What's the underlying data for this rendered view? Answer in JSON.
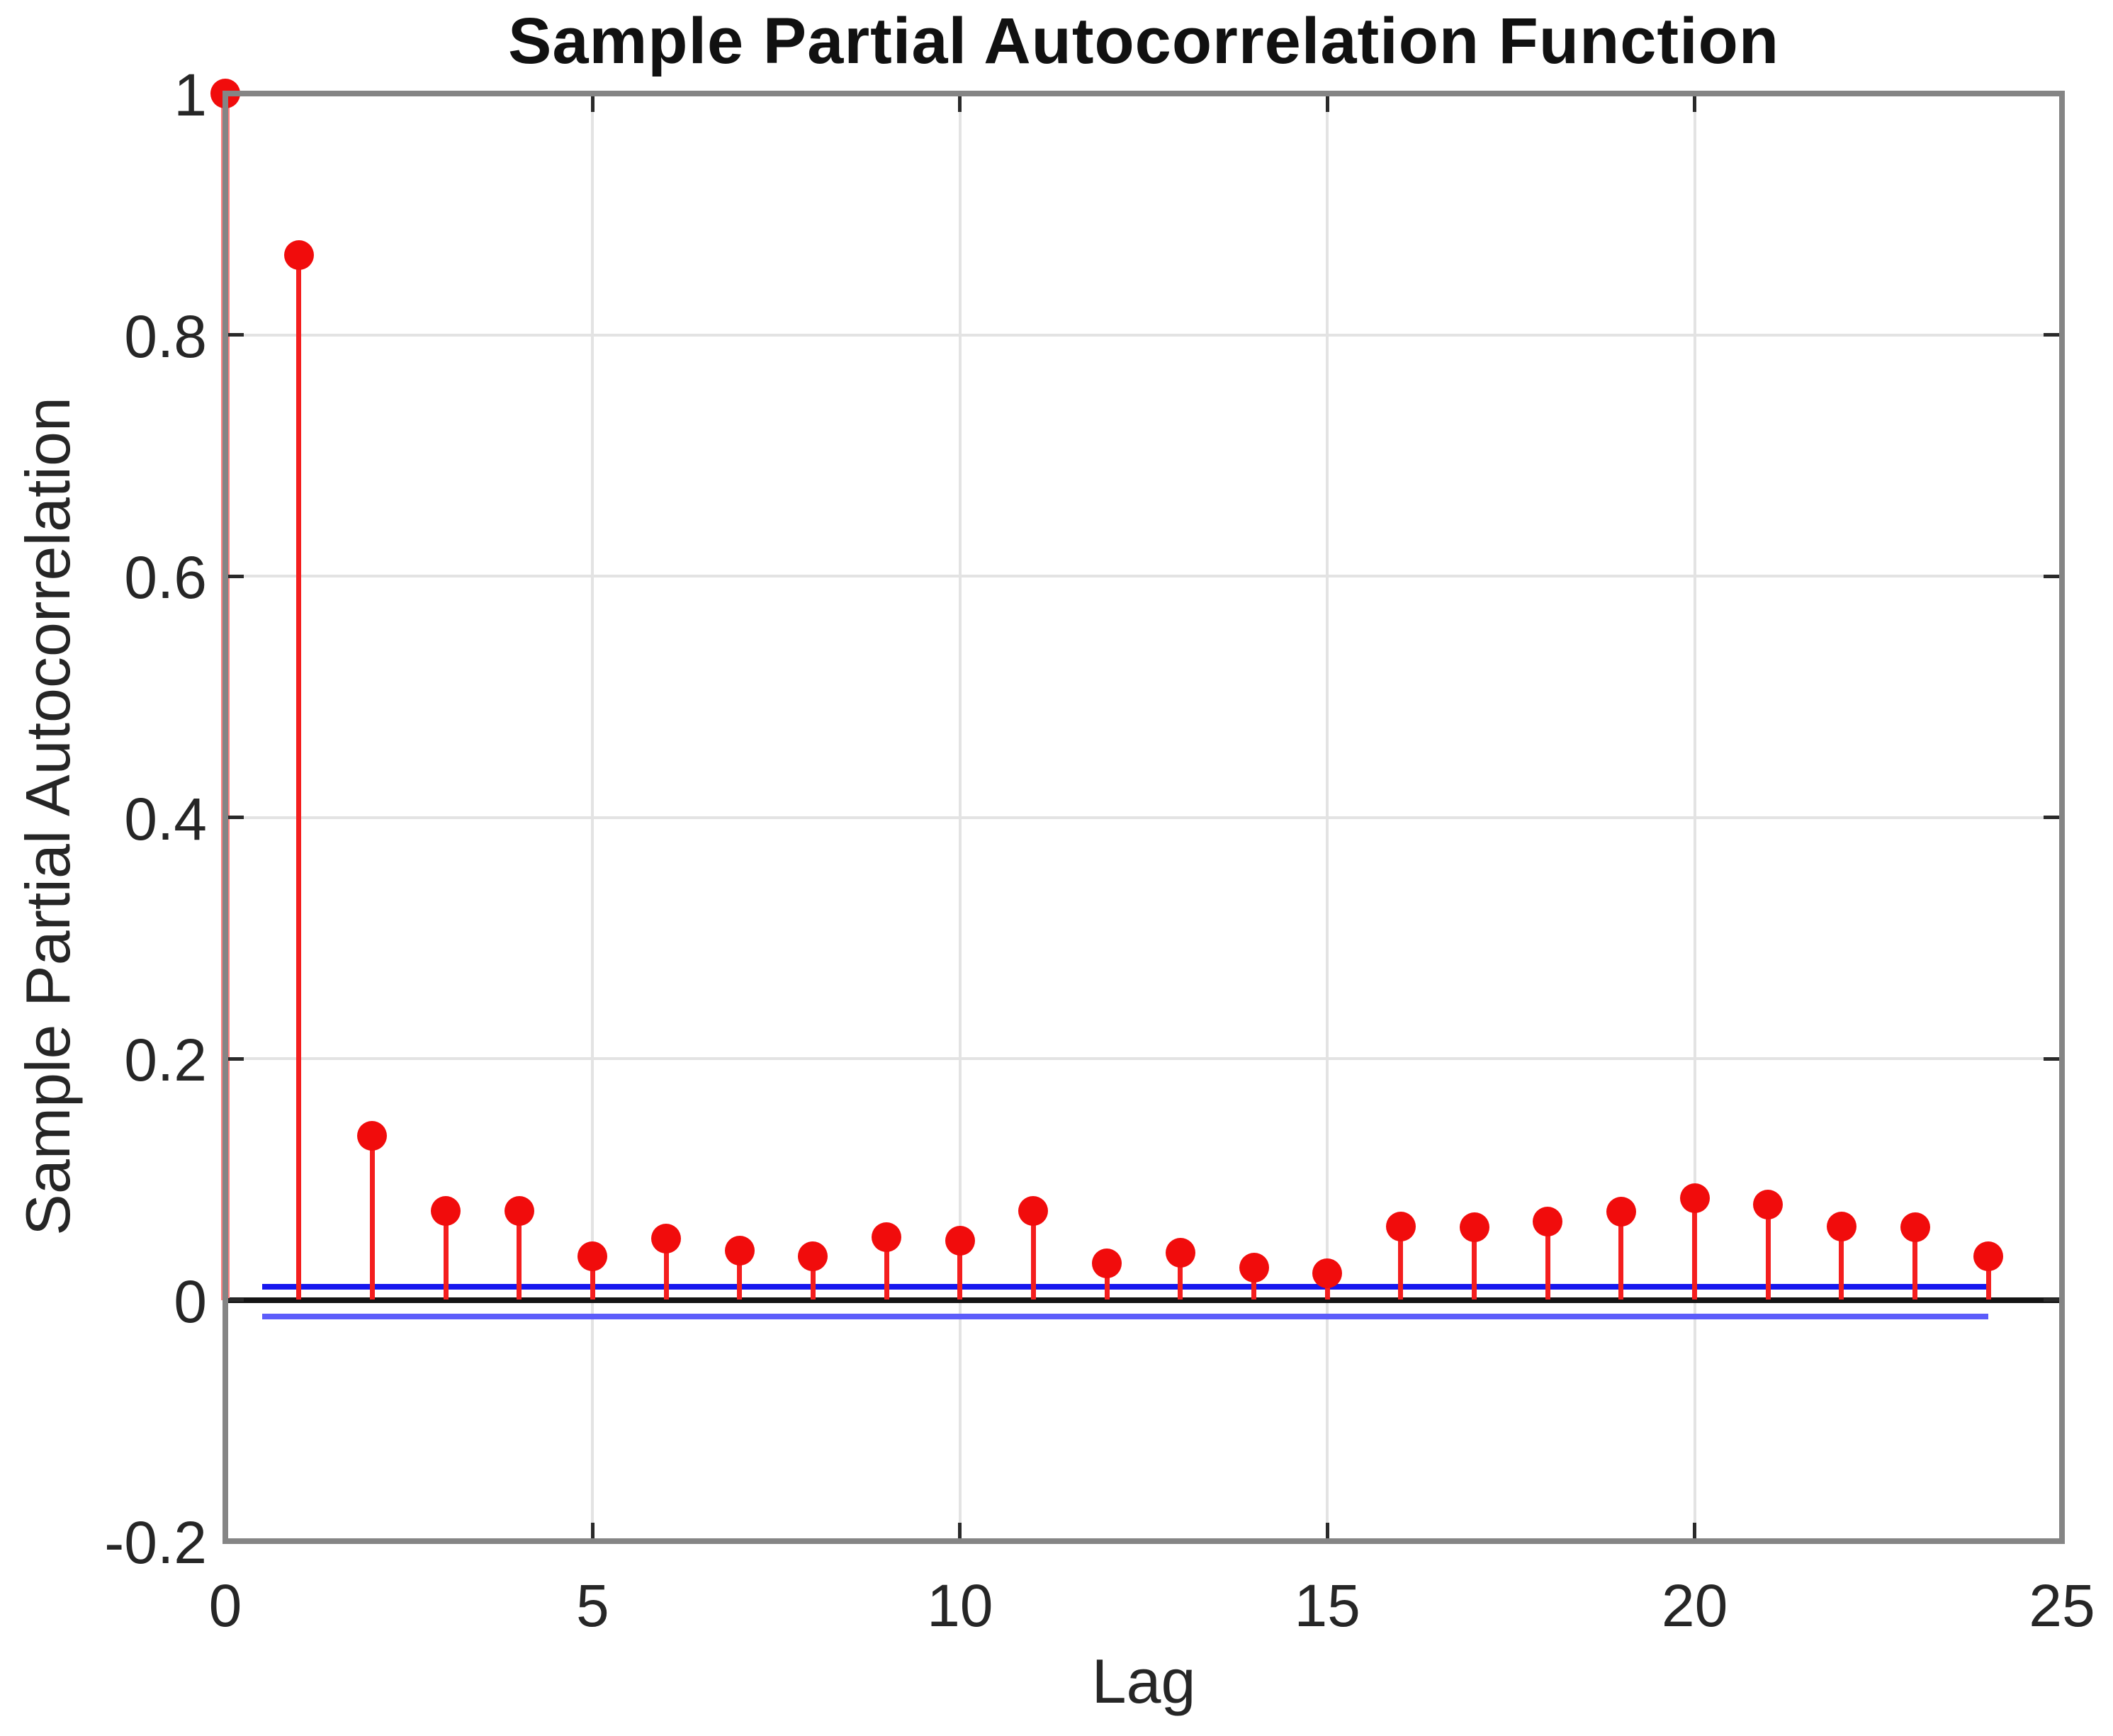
{
  "title": "Sample Partial Autocorrelation Function",
  "xlabel": "Lag",
  "ylabel": "Sample Partial Autocorrelation",
  "chart_data": {
    "type": "stem",
    "title": "Sample Partial Autocorrelation Function",
    "xlabel": "Lag",
    "ylabel": "Sample Partial Autocorrelation",
    "x": [
      0,
      1,
      2,
      3,
      4,
      5,
      6,
      7,
      8,
      9,
      10,
      11,
      12,
      13,
      14,
      15,
      16,
      17,
      18,
      19,
      20,
      21,
      22,
      23,
      24
    ],
    "values": [
      1.0,
      0.866,
      0.136,
      0.074,
      0.074,
      0.036,
      0.051,
      0.041,
      0.036,
      0.052,
      0.049,
      0.074,
      0.03,
      0.039,
      0.027,
      0.022,
      0.061,
      0.06,
      0.065,
      0.073,
      0.084,
      0.079,
      0.061,
      0.06,
      0.036
    ],
    "xlim": [
      0,
      25
    ],
    "ylim": [
      -0.2,
      1
    ],
    "xticks": [
      0,
      5,
      10,
      15,
      20,
      25
    ],
    "xtick_labels": [
      "0",
      "5",
      "10",
      "15",
      "20",
      "25"
    ],
    "yticks": [
      -0.2,
      0,
      0.2,
      0.4,
      0.6,
      0.8,
      1
    ],
    "ytick_labels": [
      "-0.2",
      "0",
      "0.2",
      "0.4",
      "0.6",
      "0.8",
      "1"
    ],
    "grid": true,
    "legend": "none",
    "confidence_bounds": {
      "upper": 0.011,
      "lower": -0.014,
      "x_start": 0.5,
      "x_end": 24
    },
    "colors": {
      "stem": "#f41e1e",
      "stem_lag0": "#ff8080",
      "marker": "#f10c0c",
      "bound_upper": "#1717ee",
      "bound_lower": "#5c5cfa",
      "zero_line": "#141414",
      "grid": "#e3e3e3",
      "axis_box": "#858585",
      "tick": "#2a2a2a",
      "text": "#262626",
      "title_text": "#111111"
    }
  }
}
